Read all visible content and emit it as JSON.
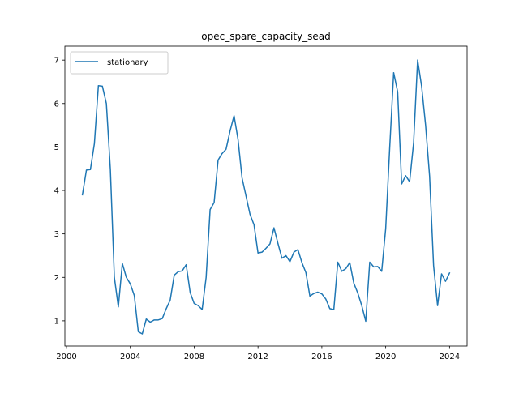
{
  "chart_data": {
    "type": "line",
    "title": "opec_spare_capacity_sead",
    "xlabel": "",
    "ylabel": "",
    "xlim": [
      1999.9,
      2025.1
    ],
    "ylim": [
      0.42,
      7.32
    ],
    "x_ticks": [
      2000,
      2004,
      2008,
      2012,
      2016,
      2020,
      2024
    ],
    "y_ticks": [
      1,
      2,
      3,
      4,
      5,
      6,
      7
    ],
    "grid": false,
    "legend": {
      "placement": "upper-left"
    },
    "series": [
      {
        "name": "stationary",
        "color": "#1f77b4",
        "x": [
          2001.0,
          2001.25,
          2001.5,
          2001.75,
          2002.0,
          2002.25,
          2002.5,
          2002.75,
          2003.0,
          2003.25,
          2003.5,
          2003.75,
          2004.0,
          2004.25,
          2004.5,
          2004.75,
          2005.0,
          2005.25,
          2005.5,
          2005.75,
          2006.0,
          2006.25,
          2006.5,
          2006.75,
          2007.0,
          2007.25,
          2007.5,
          2007.75,
          2008.0,
          2008.25,
          2008.5,
          2008.75,
          2009.0,
          2009.25,
          2009.5,
          2009.75,
          2010.0,
          2010.25,
          2010.5,
          2010.75,
          2011.0,
          2011.25,
          2011.5,
          2011.75,
          2012.0,
          2012.25,
          2012.5,
          2012.75,
          2013.0,
          2013.25,
          2013.5,
          2013.75,
          2014.0,
          2014.25,
          2014.5,
          2014.75,
          2015.0,
          2015.25,
          2015.5,
          2015.75,
          2016.0,
          2016.25,
          2016.5,
          2016.75,
          2017.0,
          2017.25,
          2017.5,
          2017.75,
          2018.0,
          2018.25,
          2018.5,
          2018.75,
          2019.0,
          2019.25,
          2019.5,
          2019.75,
          2020.0,
          2020.25,
          2020.5,
          2020.75,
          2021.0,
          2021.25,
          2021.5,
          2021.75,
          2022.0,
          2022.25,
          2022.5,
          2022.75,
          2023.0,
          2023.25,
          2023.5,
          2023.75,
          2024.0
        ],
        "y": [
          3.9,
          4.47,
          4.48,
          5.08,
          6.41,
          6.4,
          6.0,
          4.48,
          2.0,
          1.32,
          2.32,
          2.0,
          1.85,
          1.58,
          0.75,
          0.7,
          1.04,
          0.97,
          1.02,
          1.02,
          1.05,
          1.28,
          1.48,
          2.05,
          2.13,
          2.15,
          2.29,
          1.65,
          1.4,
          1.35,
          1.26,
          2.0,
          3.56,
          3.72,
          4.7,
          4.85,
          4.95,
          5.37,
          5.72,
          5.17,
          4.29,
          3.87,
          3.45,
          3.21,
          2.56,
          2.58,
          2.67,
          2.77,
          3.14,
          2.78,
          2.44,
          2.5,
          2.36,
          2.58,
          2.64,
          2.34,
          2.11,
          1.57,
          1.63,
          1.66,
          1.62,
          1.5,
          1.28,
          1.26,
          2.35,
          2.14,
          2.2,
          2.34,
          1.87,
          1.64,
          1.35,
          0.99,
          2.35,
          2.24,
          2.25,
          2.14,
          3.12,
          4.97,
          6.71,
          6.27,
          4.15,
          4.34,
          4.2,
          5.1,
          7.0,
          6.4,
          5.5,
          4.33,
          2.27,
          1.35,
          2.08,
          1.91,
          2.1
        ]
      }
    ]
  }
}
